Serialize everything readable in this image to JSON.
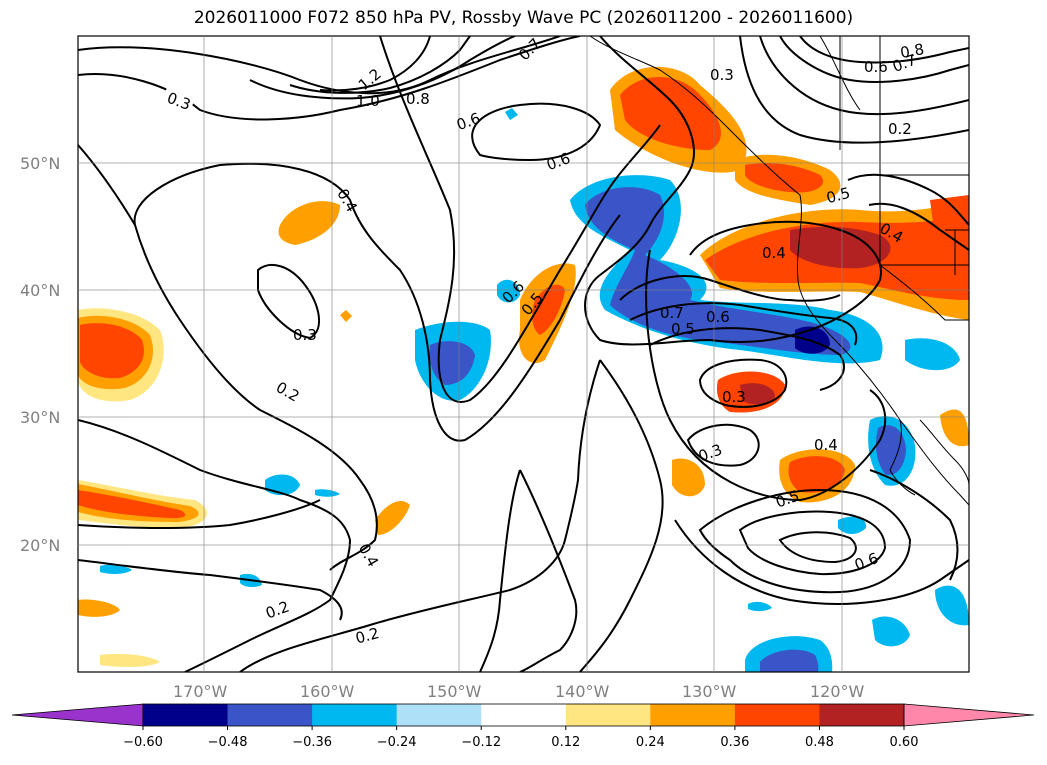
{
  "title": "2026011000 F072 850 hPa PV, Rossby Wave PC (2026011200 - 2026011600)",
  "map": {
    "lon_ticks": [
      "170°W",
      "160°W",
      "150°W",
      "140°W",
      "130°W",
      "120°W"
    ],
    "lat_ticks": [
      "50°N",
      "40°N",
      "30°N",
      "20°N"
    ],
    "contour_labels": [
      "0.3",
      "1.2",
      "1.0",
      "0.8",
      "0.7",
      "0.6",
      "0.6",
      "0.4",
      "0.3",
      "0.2",
      "0.6",
      "0.5",
      "0.3",
      "0.5",
      "0.7",
      "0.6",
      "0.4",
      "0.3",
      "0.2",
      "0.4",
      "0.3",
      "0.5",
      "0.6",
      "0.2",
      "0.2",
      "0.4",
      "0.8",
      "0.7",
      "0.6",
      "0.5",
      "0.4"
    ]
  },
  "colorbar": {
    "ticks": [
      "−0.60",
      "−0.48",
      "−0.36",
      "−0.24",
      "−0.12",
      "0.12",
      "0.24",
      "0.36",
      "0.48",
      "0.60"
    ],
    "colors": [
      "#9933cc",
      "#00008b",
      "#3a55c8",
      "#00b8f0",
      "#aee0f8",
      "#ffffff",
      "#ffe680",
      "#ffa000",
      "#ff4500",
      "#b22222",
      "#ff88aa"
    ]
  }
}
